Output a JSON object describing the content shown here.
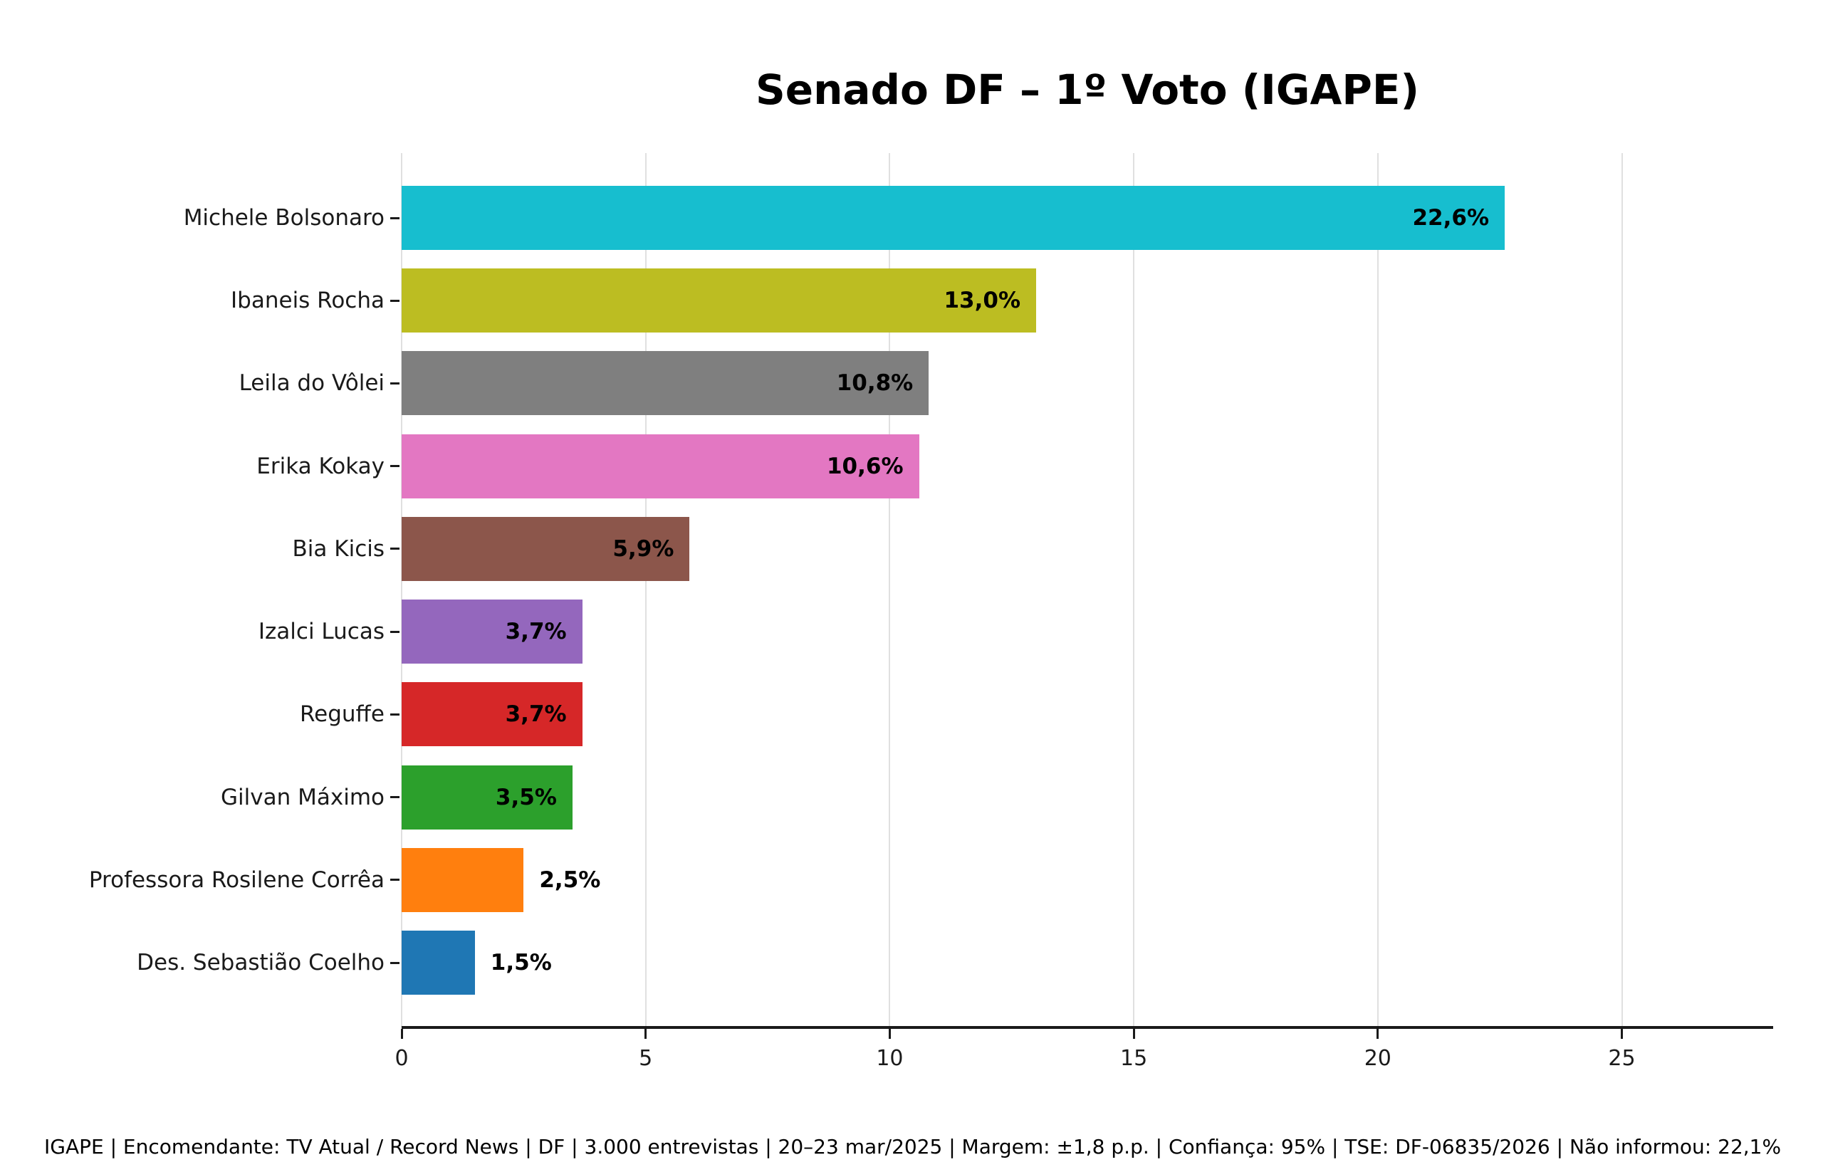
{
  "chart_data": {
    "type": "bar",
    "orientation": "horizontal",
    "title": "Senado DF – 1º Voto (IGAPE)",
    "categories": [
      "Michele Bolsonaro",
      "Ibaneis Rocha",
      "Leila do Vôlei",
      "Erika Kokay",
      "Bia Kicis",
      "Izalci Lucas",
      "Reguffe",
      "Gilvan Máximo",
      "Professora Rosilene Corrêa",
      "Des. Sebastião Coelho"
    ],
    "values": [
      22.6,
      13.0,
      10.8,
      10.6,
      5.9,
      3.7,
      3.7,
      3.5,
      2.5,
      1.5
    ],
    "value_labels": [
      "22,6%",
      "13,0%",
      "10,8%",
      "10,6%",
      "5,9%",
      "3,7%",
      "3,7%",
      "3,5%",
      "2,5%",
      "1,5%"
    ],
    "colors": [
      "#17becf",
      "#bcbd22",
      "#7f7f7f",
      "#e377c2",
      "#8c564b",
      "#9467bd",
      "#d62728",
      "#2ca02c",
      "#ff7f0e",
      "#1f77b4"
    ],
    "label_inside": [
      true,
      true,
      true,
      true,
      true,
      true,
      true,
      true,
      false,
      false
    ],
    "xticks": [
      0,
      5,
      10,
      15,
      20,
      25
    ],
    "xtick_labels": [
      "0",
      "5",
      "10",
      "15",
      "20",
      "25"
    ],
    "xlim": [
      0,
      28.1
    ],
    "grid": true,
    "legend": null,
    "footnote": "IGAPE | Encomendante: TV Atual / Record News | DF | 3.000 entrevistas | 20–23 mar/2025 | Margem: ±1,8 p.p. | Confiança: 95% | TSE: DF-06835/2026 | Não informou: 22,1%"
  }
}
